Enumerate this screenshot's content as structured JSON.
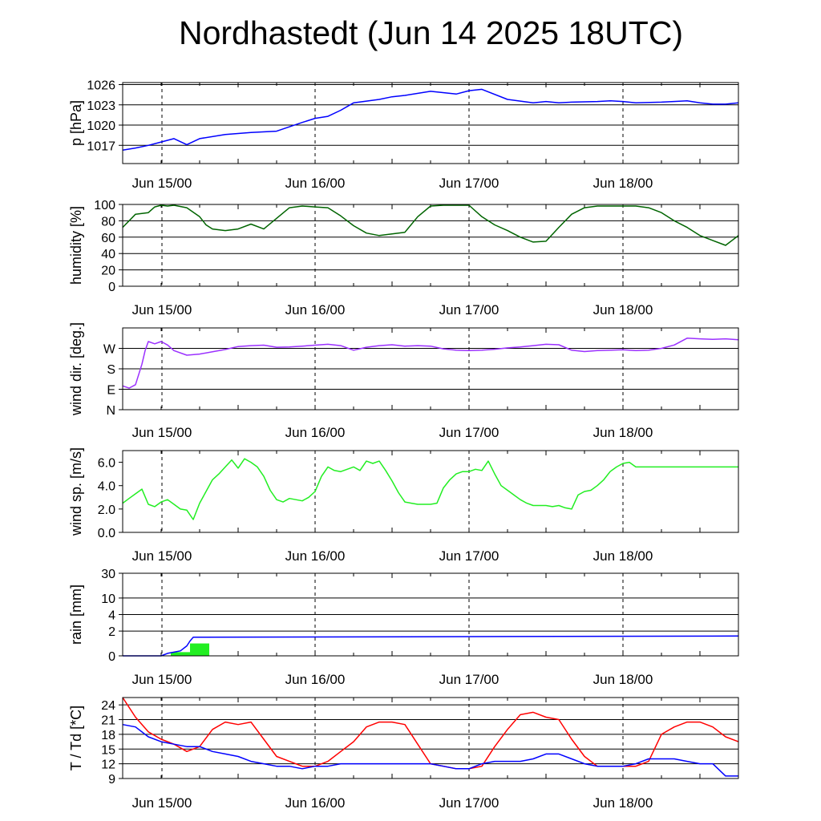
{
  "title": "Nordhastedt (Jun 14 2025 18UTC)",
  "colors": {
    "blue": "#0000ff",
    "green_dark": "#006400",
    "purple": "#9b30ff",
    "green_light": "#22ee22",
    "red": "#ff0000",
    "grid": "#000000"
  },
  "chart_data": [
    {
      "id": "pressure",
      "type": "line",
      "ylabel": "p [hPa]",
      "x_ticks": [
        "Jun 15/00",
        "Jun 16/00",
        "Jun 17/00",
        "Jun 18/00"
      ],
      "y_ticks": [
        {
          "v": 1017,
          "label": "1017"
        },
        {
          "v": 1020,
          "label": "1020"
        },
        {
          "v": 1023,
          "label": "1023"
        },
        {
          "v": 1026,
          "label": "1026"
        }
      ],
      "ylim": [
        1014.3,
        1026.3
      ],
      "xlim": [
        0,
        96
      ],
      "grid": true,
      "series": [
        {
          "color": "#0000ff",
          "x": [
            0,
            2,
            4,
            6,
            8,
            10,
            12,
            16,
            20,
            24,
            28,
            30,
            32,
            34,
            36,
            40,
            42,
            44,
            48,
            52,
            54,
            56,
            60,
            64,
            66,
            68,
            70,
            74,
            76,
            78,
            80,
            84,
            88,
            90,
            92,
            94,
            96
          ],
          "y": [
            1016.3,
            1016.6,
            1017.0,
            1017.5,
            1018.0,
            1017.1,
            1018.0,
            1018.6,
            1018.9,
            1019.1,
            1020.4,
            1021.0,
            1021.3,
            1022.2,
            1023.3,
            1023.8,
            1024.2,
            1024.4,
            1025.0,
            1024.6,
            1025.1,
            1025.3,
            1023.8,
            1023.3,
            1023.5,
            1023.3,
            1023.4,
            1023.5,
            1023.6,
            1023.5,
            1023.3,
            1023.4,
            1023.6,
            1023.3,
            1023.1,
            1023.1,
            1023.3
          ]
        }
      ]
    },
    {
      "id": "humidity",
      "type": "line",
      "ylabel": "humidity [%]",
      "x_ticks": [
        "Jun 15/00",
        "Jun 16/00",
        "Jun 17/00",
        "Jun 18/00"
      ],
      "y_ticks": [
        {
          "v": 0,
          "label": "0"
        },
        {
          "v": 20,
          "label": "20"
        },
        {
          "v": 40,
          "label": "40"
        },
        {
          "v": 60,
          "label": "60"
        },
        {
          "v": 80,
          "label": "80"
        },
        {
          "v": 100,
          "label": "100"
        }
      ],
      "ylim": [
        0,
        100
      ],
      "xlim": [
        0,
        96
      ],
      "grid": true,
      "series": [
        {
          "color": "#006400",
          "x": [
            0,
            2,
            4,
            5,
            6,
            7,
            8,
            10,
            12,
            13,
            14,
            16,
            18,
            20,
            22,
            24,
            26,
            28,
            30,
            32,
            34,
            36,
            38,
            40,
            42,
            44,
            46,
            48,
            50,
            52,
            54,
            56,
            58,
            60,
            62,
            64,
            66,
            68,
            70,
            72,
            74,
            76,
            78,
            80,
            82,
            84,
            86,
            88,
            90,
            92,
            94,
            96
          ],
          "y": [
            72,
            88,
            90,
            97,
            99,
            98,
            99,
            96,
            85,
            75,
            70,
            68,
            70,
            76,
            70,
            83,
            96,
            98,
            97,
            96,
            86,
            74,
            65,
            62,
            64,
            66,
            85,
            98,
            99,
            99,
            99,
            85,
            75,
            68,
            60,
            54,
            55,
            72,
            88,
            96,
            98,
            98,
            98,
            98,
            96,
            90,
            80,
            72,
            62,
            56,
            50,
            62
          ]
        }
      ]
    },
    {
      "id": "wind_direction",
      "type": "line",
      "ylabel": "wind dir. [deg.]",
      "x_ticks": [
        "Jun 15/00",
        "Jun 16/00",
        "Jun 17/00",
        "Jun 18/00"
      ],
      "y_ticks": [
        {
          "v": 0,
          "label": "N"
        },
        {
          "v": 90,
          "label": "E"
        },
        {
          "v": 180,
          "label": "S"
        },
        {
          "v": 270,
          "label": "W"
        }
      ],
      "ylim": [
        0,
        360
      ],
      "xlim": [
        0,
        96
      ],
      "grid": true,
      "series": [
        {
          "color": "#9b30ff",
          "x": [
            0,
            1,
            2,
            3,
            3.5,
            4,
            5,
            6,
            7,
            8,
            10,
            12,
            14,
            16,
            18,
            20,
            22,
            24,
            26,
            28,
            30,
            32,
            34,
            36,
            38,
            40,
            42,
            44,
            46,
            48,
            50,
            52,
            54,
            56,
            58,
            60,
            62,
            64,
            66,
            68,
            70,
            72,
            74,
            76,
            78,
            80,
            82,
            84,
            86,
            88,
            90,
            92,
            94,
            96
          ],
          "y": [
            105,
            95,
            110,
            200,
            260,
            300,
            290,
            300,
            285,
            260,
            240,
            245,
            255,
            265,
            278,
            282,
            284,
            275,
            276,
            280,
            284,
            288,
            282,
            262,
            275,
            282,
            286,
            280,
            282,
            280,
            268,
            262,
            260,
            262,
            266,
            272,
            276,
            282,
            288,
            286,
            262,
            256,
            260,
            262,
            264,
            260,
            262,
            270,
            285,
            315,
            312,
            310,
            312,
            308
          ]
        }
      ]
    },
    {
      "id": "wind_speed",
      "type": "line",
      "ylabel": "wind sp. [m/s]",
      "x_ticks": [
        "Jun 15/00",
        "Jun 16/00",
        "Jun 17/00",
        "Jun 18/00"
      ],
      "y_ticks": [
        {
          "v": 0,
          "label": "0.0"
        },
        {
          "v": 2,
          "label": "2.0"
        },
        {
          "v": 4,
          "label": "4.0"
        },
        {
          "v": 6,
          "label": "6.0"
        }
      ],
      "ylim": [
        0,
        7.0
      ],
      "xlim": [
        0,
        96
      ],
      "grid": false,
      "series": [
        {
          "color": "#22ee22",
          "x": [
            0,
            1,
            2,
            3,
            4,
            5,
            6,
            7,
            8,
            9,
            10,
            11,
            12,
            13,
            14,
            15,
            16,
            17,
            18,
            19,
            20,
            21,
            22,
            23,
            24,
            25,
            26,
            27,
            28,
            29,
            30,
            31,
            32,
            33,
            34,
            35,
            36,
            37,
            38,
            39,
            40,
            41,
            42,
            43,
            44,
            45,
            46,
            47,
            48,
            49,
            50,
            51,
            52,
            53,
            54,
            55,
            56,
            57,
            58,
            59,
            60,
            61,
            62,
            63,
            64,
            65,
            66,
            67,
            68,
            69,
            70,
            71,
            72,
            73,
            74,
            75,
            76,
            77,
            78,
            79,
            80,
            81,
            82,
            83,
            84,
            85,
            86,
            87,
            88,
            89,
            90,
            91,
            92,
            93,
            94,
            95,
            96
          ],
          "y": [
            2.5,
            2.9,
            3.3,
            3.7,
            2.4,
            2.2,
            2.6,
            2.8,
            2.4,
            2.0,
            1.9,
            1.1,
            2.5,
            3.5,
            4.5,
            5.0,
            5.6,
            6.2,
            5.5,
            6.3,
            6.0,
            5.6,
            4.8,
            3.6,
            2.8,
            2.6,
            2.9,
            2.8,
            2.7,
            3.0,
            3.5,
            4.8,
            5.6,
            5.3,
            5.2,
            5.4,
            5.6,
            5.3,
            6.1,
            5.9,
            6.1,
            5.3,
            4.4,
            3.4,
            2.6,
            2.5,
            2.4,
            2.4,
            2.4,
            2.5,
            3.8,
            4.5,
            5.0,
            5.2,
            5.2,
            5.4,
            5.3,
            6.1,
            5.0,
            4.0,
            3.6,
            3.2,
            2.8,
            2.5,
            2.3,
            2.3,
            2.3,
            2.2,
            2.3,
            2.1,
            2.0,
            3.2,
            3.5,
            3.6,
            4.0,
            4.5,
            5.2,
            5.6,
            5.9,
            6.0,
            5.6,
            5.6,
            5.6,
            5.6,
            5.6,
            5.6,
            5.6,
            5.6,
            5.6,
            5.6,
            5.6,
            5.6,
            5.6,
            5.6,
            5.6,
            5.6,
            5.6
          ]
        }
      ]
    },
    {
      "id": "rain",
      "type": "bar",
      "ylabel": "rain [mm]",
      "x_ticks": [
        "Jun 15/00",
        "Jun 16/00",
        "Jun 17/00",
        "Jun 18/00"
      ],
      "y_ticks": [
        {
          "v": 0,
          "label": "0"
        },
        {
          "v": 2,
          "label": "2"
        },
        {
          "v": 4,
          "label": "4"
        },
        {
          "v": 10,
          "label": "10"
        },
        {
          "v": 30,
          "label": "30"
        }
      ],
      "ylim": [
        0,
        30
      ],
      "xlim": [
        0,
        96
      ],
      "grid": true,
      "bars": [
        {
          "x0": 7.5,
          "x1": 10.5,
          "value": 0.3,
          "color": "#22ee22"
        },
        {
          "x0": 10.5,
          "x1": 13.5,
          "value": 1.0,
          "color": "#22ee22"
        }
      ],
      "series": [
        {
          "color": "#0000ff",
          "x": [
            0,
            6,
            7,
            8,
            9,
            10,
            10.5,
            11,
            96
          ],
          "y": [
            0,
            0,
            0.2,
            0.3,
            0.4,
            0.8,
            1.2,
            1.5,
            1.6
          ]
        }
      ]
    },
    {
      "id": "temperature",
      "type": "line",
      "ylabel": "T / Td [*C]",
      "x_ticks": [
        "Jun 15/00",
        "Jun 16/00",
        "Jun 17/00",
        "Jun 18/00"
      ],
      "y_ticks": [
        {
          "v": 9,
          "label": "9"
        },
        {
          "v": 12,
          "label": "12"
        },
        {
          "v": 15,
          "label": "15"
        },
        {
          "v": 18,
          "label": "18"
        },
        {
          "v": 21,
          "label": "21"
        },
        {
          "v": 24,
          "label": "24"
        }
      ],
      "ylim": [
        9,
        25.5
      ],
      "xlim": [
        0,
        96
      ],
      "grid": true,
      "series": [
        {
          "name": "T",
          "color": "#ff0000",
          "x": [
            0,
            2,
            4,
            6,
            8,
            10,
            12,
            14,
            16,
            18,
            20,
            22,
            24,
            26,
            28,
            30,
            32,
            34,
            36,
            38,
            40,
            42,
            44,
            46,
            48,
            50,
            52,
            54,
            56,
            58,
            60,
            62,
            64,
            66,
            68,
            70,
            72,
            74,
            76,
            78,
            80,
            82,
            84,
            86,
            88,
            90,
            92,
            94,
            96
          ],
          "y": [
            25.5,
            21.5,
            18.5,
            17.0,
            16.0,
            14.5,
            15.5,
            19.0,
            20.5,
            20.0,
            20.5,
            17.0,
            13.5,
            12.5,
            11.5,
            11.5,
            12.5,
            14.5,
            16.5,
            19.5,
            20.5,
            20.5,
            20.0,
            16.0,
            12.0,
            11.5,
            11.0,
            11.0,
            11.5,
            15.5,
            19.0,
            22.0,
            22.5,
            21.5,
            21.0,
            17.0,
            13.5,
            11.5,
            11.5,
            11.5,
            11.5,
            12.5,
            18.0,
            19.5,
            20.5,
            20.5,
            19.5,
            17.5,
            16.5
          ]
        },
        {
          "name": "Td",
          "color": "#0000ff",
          "x": [
            0,
            2,
            4,
            6,
            8,
            10,
            12,
            14,
            16,
            18,
            20,
            22,
            24,
            26,
            28,
            30,
            32,
            34,
            36,
            38,
            40,
            42,
            44,
            46,
            48,
            50,
            52,
            54,
            56,
            58,
            60,
            62,
            64,
            66,
            68,
            70,
            72,
            74,
            76,
            78,
            80,
            82,
            84,
            86,
            88,
            90,
            92,
            94,
            96
          ],
          "y": [
            20.0,
            19.5,
            17.5,
            16.5,
            16.0,
            15.5,
            15.5,
            14.5,
            14.0,
            13.5,
            12.5,
            12.0,
            11.5,
            11.5,
            11.0,
            11.5,
            11.5,
            12.0,
            12.0,
            12.0,
            12.0,
            12.0,
            12.0,
            12.0,
            12.0,
            11.5,
            11.0,
            11.0,
            12.0,
            12.5,
            12.5,
            12.5,
            13.0,
            14.0,
            14.0,
            13.0,
            12.0,
            11.5,
            11.5,
            11.5,
            12.0,
            13.0,
            13.0,
            13.0,
            12.5,
            12.0,
            12.0,
            9.5,
            9.5
          ]
        }
      ]
    }
  ]
}
